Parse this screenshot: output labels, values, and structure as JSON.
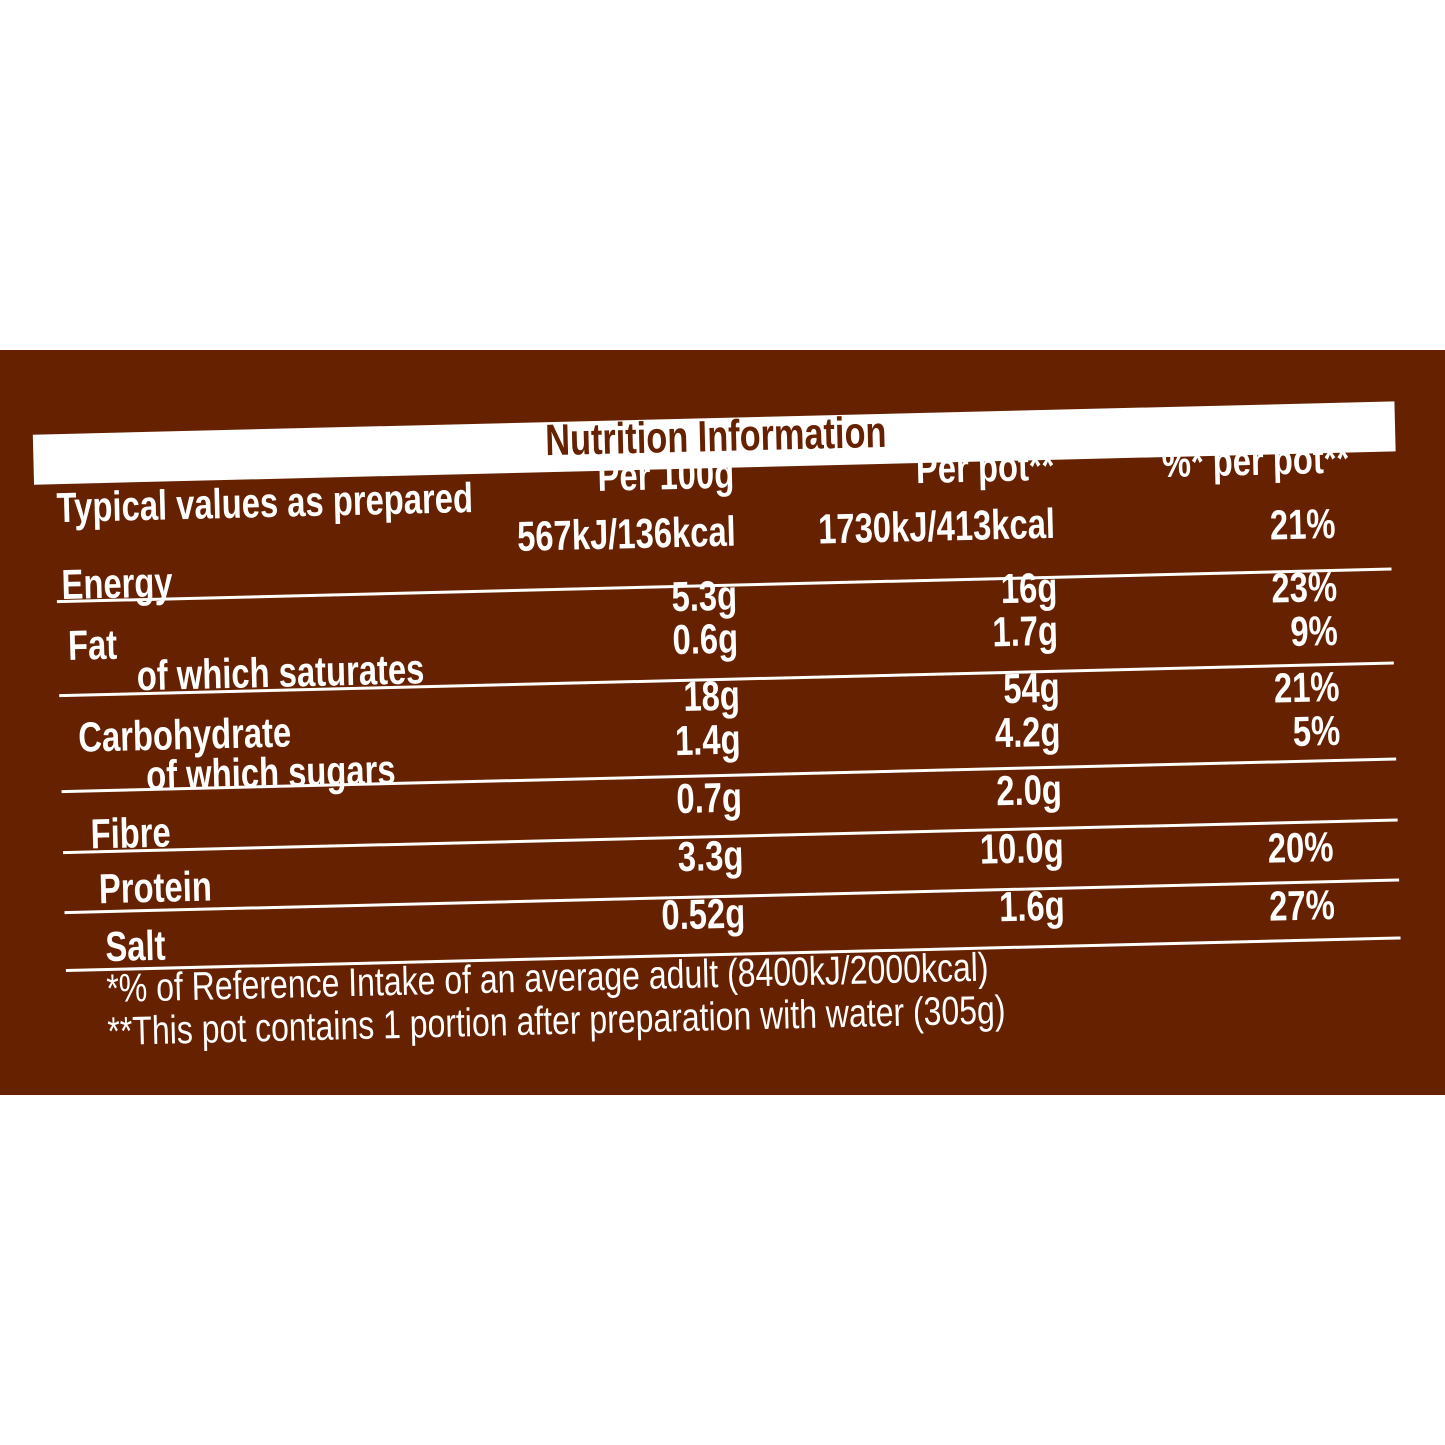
{
  "title": "Nutrition Information",
  "header": {
    "label": "Typical values as prepared",
    "per100": "Per 100g",
    "perpot": "Per pot**",
    "ri": "%* per pot**"
  },
  "rows": [
    {
      "label": "Energy",
      "per100": "567kJ/136kcal",
      "perpot": "1730kJ/413kcal",
      "ri": "21%"
    },
    {
      "label": "Fat",
      "per100": "5.3g",
      "perpot": "16g",
      "ri": "23%"
    },
    {
      "label": "of which saturates",
      "per100": "0.6g",
      "perpot": "1.7g",
      "ri": "9%"
    },
    {
      "label": "Carbohydrate",
      "per100": "18g",
      "perpot": "54g",
      "ri": "21%"
    },
    {
      "label": "of which sugars",
      "per100": "1.4g",
      "perpot": "4.2g",
      "ri": "5%"
    },
    {
      "label": "Fibre",
      "per100": "0.7g",
      "perpot": "2.0g",
      "ri": ""
    },
    {
      "label": "Protein",
      "per100": "3.3g",
      "perpot": "10.0g",
      "ri": "20%"
    },
    {
      "label": "Salt",
      "per100": "0.52g",
      "perpot": "1.6g",
      "ri": "27%"
    }
  ],
  "footnotes": [
    "*% of Reference Intake of an average adult (8400kJ/2000kcal)",
    "**This pot contains 1 portion after preparation with water (305g)"
  ],
  "colors": {
    "background": "#662200",
    "text": "#ffffff"
  }
}
